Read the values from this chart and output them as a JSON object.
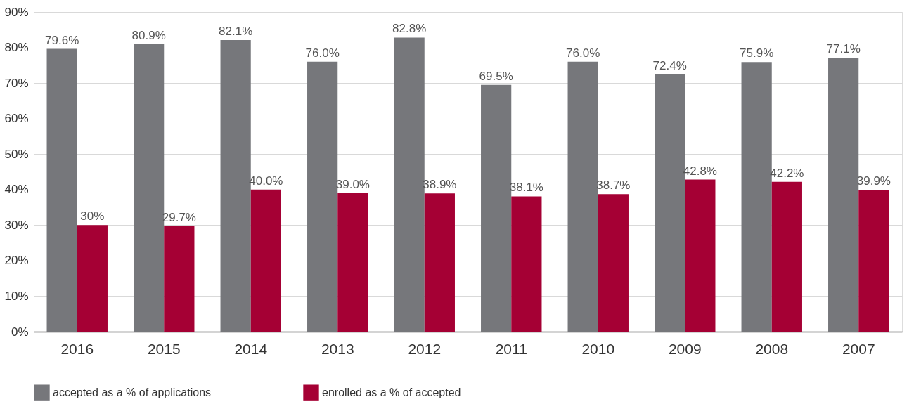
{
  "chart_data": {
    "type": "bar",
    "categories": [
      "2016",
      "2015",
      "2014",
      "2013",
      "2012",
      "2011",
      "2010",
      "2009",
      "2008",
      "2007"
    ],
    "series": [
      {
        "name": "accepted as a % of applications",
        "color": "#76777b",
        "values": [
          79.6,
          80.9,
          82.1,
          76.0,
          82.8,
          69.5,
          76.0,
          72.4,
          75.9,
          77.1
        ],
        "value_labels": [
          "79.6%",
          "80.9%",
          "82.1%",
          "76.0%",
          "82.8%",
          "69.5%",
          "76.0%",
          "72.4%",
          "75.9%",
          "77.1%"
        ]
      },
      {
        "name": "enrolled as a % of accepted",
        "color": "#a50034",
        "values": [
          30,
          29.7,
          40.0,
          39.0,
          38.9,
          38.1,
          38.7,
          42.8,
          42.2,
          39.9
        ],
        "value_labels": [
          "30%",
          "29.7%",
          "40.0%",
          "39.0%",
          "38.9%",
          "38.1%",
          "38.7%",
          "42.8%",
          "42.2%",
          "39.9%"
        ]
      }
    ],
    "ylim": [
      0,
      90
    ],
    "yticks": [
      {
        "value": 0,
        "label": "0%"
      },
      {
        "value": 10,
        "label": "10%"
      },
      {
        "value": 20,
        "label": "20%"
      },
      {
        "value": 30,
        "label": "30%"
      },
      {
        "value": 40,
        "label": "40%"
      },
      {
        "value": 50,
        "label": "50%"
      },
      {
        "value": 60,
        "label": "60%"
      },
      {
        "value": 70,
        "label": "70%"
      },
      {
        "value": 80,
        "label": "80%"
      },
      {
        "value": 90,
        "label": "90%"
      }
    ],
    "grid": "y",
    "legend": "bottom"
  }
}
